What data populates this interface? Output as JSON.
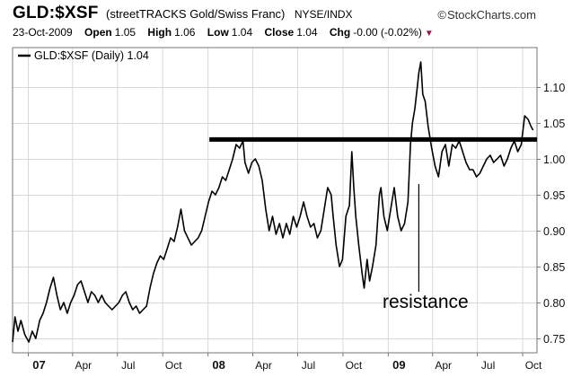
{
  "header": {
    "ticker": "GLD:$XSF",
    "full_name": "(streetTRACKS Gold/Swiss Franc)",
    "exchange": "NYSE/INDX",
    "brand": "StockCharts.com",
    "brand_icon": "copyright-icon",
    "date": "23-Oct-2009",
    "open_label": "Open",
    "open_value": "1.05",
    "high_label": "High",
    "high_value": "1.06",
    "low_label": "Low",
    "low_value": "1.04",
    "close_label": "Close",
    "close_value": "1.04",
    "chg_label": "Chg",
    "chg_value": "-0.00 (-0.02%)",
    "chg_icon": "down-triangle-icon"
  },
  "legend": {
    "text": "GLD:$XSF (Daily) 1.04",
    "position": "top-left"
  },
  "annotation": {
    "text": "resistance"
  },
  "chart_data": {
    "type": "line",
    "title": "GLD:$XSF (streetTRACKS Gold/Swiss Franc)",
    "xlabel": "",
    "ylabel": "",
    "x_ticks": [
      "07",
      "Apr",
      "Jul",
      "Oct",
      "08",
      "Apr",
      "Jul",
      "Oct",
      "09",
      "Apr",
      "Jul",
      "Oct"
    ],
    "x_range": [
      "2006-12-01",
      "2009-10-31"
    ],
    "y_ticks": [
      0.75,
      0.8,
      0.85,
      0.9,
      0.95,
      1.0,
      1.05,
      1.1
    ],
    "ylim": [
      0.73,
      1.155
    ],
    "y_axis_side": "right",
    "grid": true,
    "resistance_level": 1.027,
    "series": [
      {
        "name": "GLD:$XSF (Daily)",
        "color": "#000000",
        "points": [
          [
            "2006-12-01",
            0.745
          ],
          [
            "2006-12-06",
            0.78
          ],
          [
            "2006-12-12",
            0.76
          ],
          [
            "2006-12-18",
            0.775
          ],
          [
            "2006-12-26",
            0.755
          ],
          [
            "2007-01-03",
            0.745
          ],
          [
            "2007-01-10",
            0.76
          ],
          [
            "2007-01-17",
            0.75
          ],
          [
            "2007-01-25",
            0.775
          ],
          [
            "2007-02-01",
            0.785
          ],
          [
            "2007-02-08",
            0.8
          ],
          [
            "2007-02-15",
            0.82
          ],
          [
            "2007-02-22",
            0.835
          ],
          [
            "2007-03-01",
            0.81
          ],
          [
            "2007-03-08",
            0.79
          ],
          [
            "2007-03-15",
            0.8
          ],
          [
            "2007-03-22",
            0.785
          ],
          [
            "2007-03-29",
            0.8
          ],
          [
            "2007-04-05",
            0.81
          ],
          [
            "2007-04-12",
            0.825
          ],
          [
            "2007-04-19",
            0.83
          ],
          [
            "2007-04-26",
            0.815
          ],
          [
            "2007-05-03",
            0.8
          ],
          [
            "2007-05-10",
            0.815
          ],
          [
            "2007-05-17",
            0.81
          ],
          [
            "2007-05-24",
            0.8
          ],
          [
            "2007-05-31",
            0.81
          ],
          [
            "2007-06-07",
            0.8
          ],
          [
            "2007-06-14",
            0.795
          ],
          [
            "2007-06-21",
            0.79
          ],
          [
            "2007-06-28",
            0.795
          ],
          [
            "2007-07-05",
            0.8
          ],
          [
            "2007-07-12",
            0.81
          ],
          [
            "2007-07-19",
            0.815
          ],
          [
            "2007-07-26",
            0.8
          ],
          [
            "2007-08-02",
            0.79
          ],
          [
            "2007-08-09",
            0.795
          ],
          [
            "2007-08-16",
            0.785
          ],
          [
            "2007-08-23",
            0.79
          ],
          [
            "2007-08-30",
            0.795
          ],
          [
            "2007-09-06",
            0.82
          ],
          [
            "2007-09-13",
            0.84
          ],
          [
            "2007-09-20",
            0.855
          ],
          [
            "2007-09-27",
            0.865
          ],
          [
            "2007-10-04",
            0.86
          ],
          [
            "2007-10-11",
            0.875
          ],
          [
            "2007-10-18",
            0.89
          ],
          [
            "2007-10-25",
            0.885
          ],
          [
            "2007-11-01",
            0.905
          ],
          [
            "2007-11-08",
            0.93
          ],
          [
            "2007-11-15",
            0.9
          ],
          [
            "2007-11-22",
            0.89
          ],
          [
            "2007-11-29",
            0.88
          ],
          [
            "2007-12-06",
            0.885
          ],
          [
            "2007-12-13",
            0.89
          ],
          [
            "2007-12-20",
            0.9
          ],
          [
            "2007-12-27",
            0.92
          ],
          [
            "2008-01-03",
            0.94
          ],
          [
            "2008-01-10",
            0.955
          ],
          [
            "2008-01-17",
            0.95
          ],
          [
            "2008-01-24",
            0.96
          ],
          [
            "2008-01-31",
            0.975
          ],
          [
            "2008-02-07",
            0.97
          ],
          [
            "2008-02-14",
            0.985
          ],
          [
            "2008-02-21",
            1.0
          ],
          [
            "2008-02-28",
            1.02
          ],
          [
            "2008-03-06",
            1.015
          ],
          [
            "2008-03-13",
            1.025
          ],
          [
            "2008-03-17",
            0.995
          ],
          [
            "2008-03-24",
            0.98
          ],
          [
            "2008-03-31",
            0.995
          ],
          [
            "2008-04-07",
            1.0
          ],
          [
            "2008-04-14",
            0.99
          ],
          [
            "2008-04-21",
            0.97
          ],
          [
            "2008-04-28",
            0.93
          ],
          [
            "2008-05-05",
            0.9
          ],
          [
            "2008-05-12",
            0.92
          ],
          [
            "2008-05-19",
            0.895
          ],
          [
            "2008-05-26",
            0.91
          ],
          [
            "2008-06-02",
            0.89
          ],
          [
            "2008-06-09",
            0.91
          ],
          [
            "2008-06-16",
            0.895
          ],
          [
            "2008-06-23",
            0.92
          ],
          [
            "2008-06-30",
            0.905
          ],
          [
            "2008-07-07",
            0.92
          ],
          [
            "2008-07-14",
            0.94
          ],
          [
            "2008-07-21",
            0.92
          ],
          [
            "2008-07-28",
            0.905
          ],
          [
            "2008-08-04",
            0.91
          ],
          [
            "2008-08-11",
            0.89
          ],
          [
            "2008-08-18",
            0.9
          ],
          [
            "2008-08-25",
            0.93
          ],
          [
            "2008-09-01",
            0.96
          ],
          [
            "2008-09-08",
            0.95
          ],
          [
            "2008-09-12",
            0.92
          ],
          [
            "2008-09-18",
            0.88
          ],
          [
            "2008-09-25",
            0.85
          ],
          [
            "2008-10-01",
            0.86
          ],
          [
            "2008-10-08",
            0.92
          ],
          [
            "2008-10-15",
            0.935
          ],
          [
            "2008-10-20",
            1.01
          ],
          [
            "2008-10-24",
            0.96
          ],
          [
            "2008-10-28",
            0.92
          ],
          [
            "2008-11-03",
            0.88
          ],
          [
            "2008-11-10",
            0.84
          ],
          [
            "2008-11-14",
            0.82
          ],
          [
            "2008-11-20",
            0.86
          ],
          [
            "2008-11-25",
            0.83
          ],
          [
            "2008-12-01",
            0.85
          ],
          [
            "2008-12-08",
            0.88
          ],
          [
            "2008-12-15",
            0.95
          ],
          [
            "2008-12-18",
            0.96
          ],
          [
            "2008-12-24",
            0.92
          ],
          [
            "2008-12-31",
            0.9
          ],
          [
            "2009-01-07",
            0.93
          ],
          [
            "2009-01-14",
            0.96
          ],
          [
            "2009-01-21",
            0.92
          ],
          [
            "2009-01-28",
            0.9
          ],
          [
            "2009-02-04",
            0.91
          ],
          [
            "2009-02-11",
            0.94
          ],
          [
            "2009-02-16",
            1.02
          ],
          [
            "2009-02-20",
            1.05
          ],
          [
            "2009-02-25",
            1.07
          ],
          [
            "2009-03-02",
            1.1
          ],
          [
            "2009-03-05",
            1.12
          ],
          [
            "2009-03-09",
            1.135
          ],
          [
            "2009-03-13",
            1.09
          ],
          [
            "2009-03-18",
            1.08
          ],
          [
            "2009-03-24",
            1.045
          ],
          [
            "2009-03-31",
            1.015
          ],
          [
            "2009-04-07",
            0.99
          ],
          [
            "2009-04-14",
            0.975
          ],
          [
            "2009-04-21",
            1.01
          ],
          [
            "2009-04-28",
            1.02
          ],
          [
            "2009-05-05",
            0.99
          ],
          [
            "2009-05-12",
            1.02
          ],
          [
            "2009-05-19",
            1.015
          ],
          [
            "2009-05-26",
            1.025
          ],
          [
            "2009-06-02",
            1.01
          ],
          [
            "2009-06-09",
            0.995
          ],
          [
            "2009-06-16",
            0.985
          ],
          [
            "2009-06-23",
            0.985
          ],
          [
            "2009-06-30",
            0.975
          ],
          [
            "2009-07-07",
            0.98
          ],
          [
            "2009-07-14",
            0.99
          ],
          [
            "2009-07-21",
            1.0
          ],
          [
            "2009-07-28",
            1.005
          ],
          [
            "2009-08-04",
            0.995
          ],
          [
            "2009-08-11",
            1.0
          ],
          [
            "2009-08-18",
            1.005
          ],
          [
            "2009-08-25",
            0.99
          ],
          [
            "2009-09-01",
            1.0
          ],
          [
            "2009-09-08",
            1.015
          ],
          [
            "2009-09-15",
            1.025
          ],
          [
            "2009-09-22",
            1.01
          ],
          [
            "2009-09-29",
            1.02
          ],
          [
            "2009-10-06",
            1.06
          ],
          [
            "2009-10-13",
            1.055
          ],
          [
            "2009-10-19",
            1.045
          ],
          [
            "2009-10-23",
            1.04
          ]
        ]
      }
    ]
  }
}
